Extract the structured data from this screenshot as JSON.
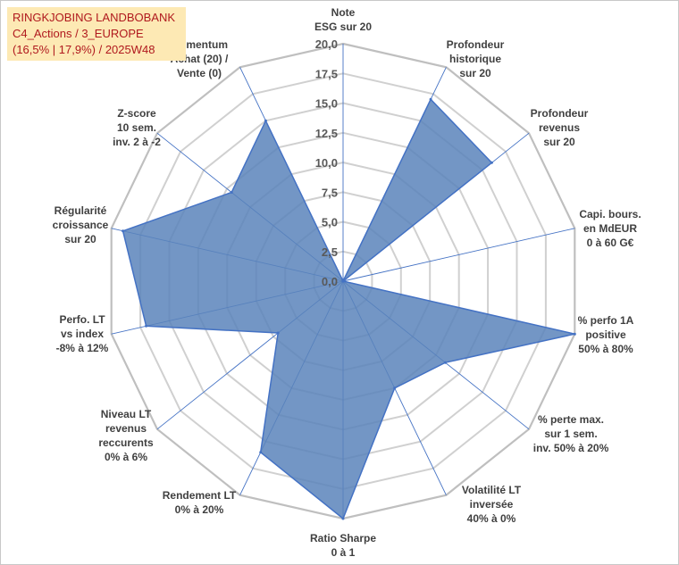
{
  "header": {
    "line1": "RINGKJOBING LANDBOBANK",
    "line2": "C4_Actions / 3_EUROPE",
    "line3": "(16,5% | 17,9%) / 2025W48"
  },
  "colors": {
    "fill": "#5b84bb",
    "stroke": "#4472c4",
    "grid": "#d0d0d0",
    "axis": "#4472c4",
    "title_bg": "#fde9b4",
    "title_text": "#b0191e"
  },
  "chart_data": {
    "type": "radar",
    "title": "RINGKJOBING LANDBOBANK",
    "rlim": [
      0,
      20
    ],
    "ticks": [
      "0,0",
      "2,5",
      "5,0",
      "7,5",
      "10,0",
      "12,5",
      "15,0",
      "17,5",
      "20,0"
    ],
    "categories": [
      [
        "Note",
        "ESG sur 20"
      ],
      [
        "Profondeur",
        "historique",
        "sur 20"
      ],
      [
        "Profondeur",
        "revenus",
        "sur 20"
      ],
      [
        "Capi. bours.",
        "en MdEUR",
        "0 à 60 G€"
      ],
      [
        "% perfo 1A",
        "positive",
        "50% à 80%"
      ],
      [
        "% perte max.",
        "sur 1 sem.",
        "inv. 50% à 20%"
      ],
      [
        "Volatilité LT",
        "inversée",
        "40% à 0%"
      ],
      [
        "Ratio Sharpe",
        "0 à 1"
      ],
      [
        "Rendement LT",
        "0% à 20%"
      ],
      [
        "Niveau LT",
        "revenus",
        "reccurents",
        "0% à 6%"
      ],
      [
        "Perfo. LT",
        "vs index",
        "-8% à 12%"
      ],
      [
        "Régularité",
        "croissance",
        "sur 20"
      ],
      [
        "Z-score",
        "10 sem.",
        "inv. 2 à -2"
      ],
      [
        "Momentum",
        "Achat (20) /",
        "Vente (0)"
      ]
    ],
    "series": [
      {
        "name": "RINGKJOBING LANDBOBANK",
        "values": [
          0,
          17,
          16,
          0,
          20,
          11,
          10,
          20,
          16,
          7,
          17,
          19,
          12,
          15
        ]
      }
    ],
    "grid": true
  }
}
